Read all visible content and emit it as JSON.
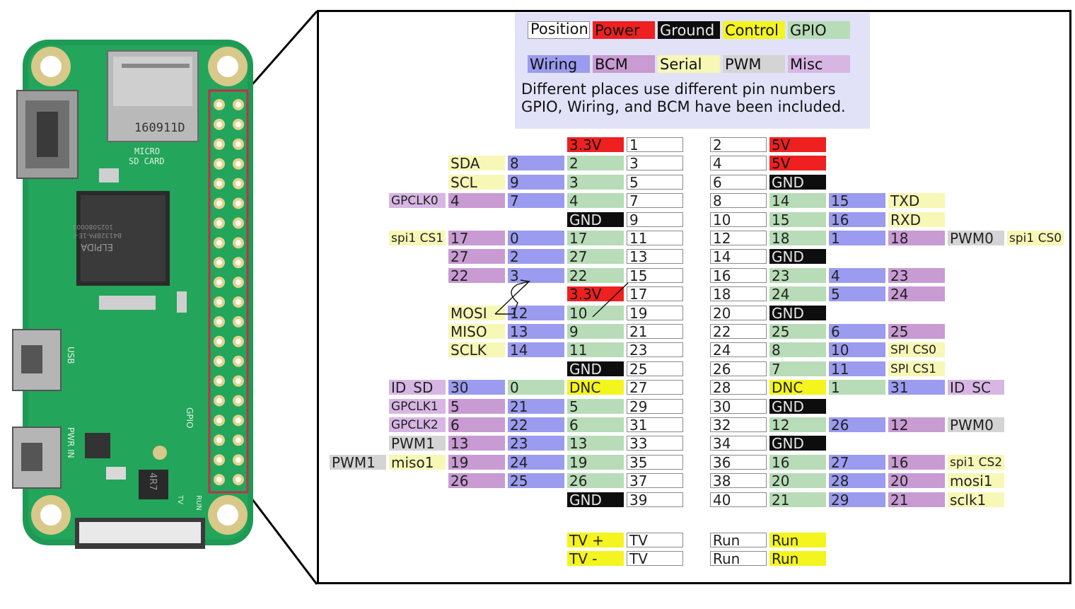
{
  "legend": {
    "items": [
      {
        "label": "Position",
        "cls": "pos"
      },
      {
        "label": "Power",
        "cls": "power"
      },
      {
        "label": "Ground",
        "cls": "gnd"
      },
      {
        "label": "Control",
        "cls": "control"
      },
      {
        "label": "GPIO",
        "cls": "gpio"
      },
      {
        "label": "Wiring",
        "cls": "wiring"
      },
      {
        "label": "BCM",
        "cls": "bcm"
      },
      {
        "label": "Serial",
        "cls": "serial"
      },
      {
        "label": "PWM",
        "cls": "pwm"
      },
      {
        "label": "Misc",
        "cls": "misc"
      }
    ],
    "note_line1": "Different places use different pin numbers",
    "note_line2": "GPIO, Wiring, and BCM have been included."
  },
  "board": {
    "sd_marking": "160911D",
    "sd_label_1": "MICRO",
    "sd_label_2": "SD CARD",
    "chip_brand": "ELPIDA",
    "chip_code": "B4132BPA-1E-F",
    "chip_code_2": "1025080000",
    "usb_label": "USB",
    "pwr_label": "PWR IN",
    "gpio_label": "GPIO",
    "inductor_label": "4R7",
    "run_label": "RUN",
    "tv_label": "TV"
  },
  "header_rows": [
    {
      "left": [
        [
          "3.3V",
          "power"
        ],
        [
          "1",
          "pos"
        ]
      ],
      "right": [
        [
          "2",
          "pos"
        ],
        [
          "5V",
          "power"
        ]
      ]
    },
    {
      "left": [
        [
          "SDA",
          "serial"
        ],
        [
          "8",
          "wiring"
        ],
        [
          "2",
          "gpio"
        ],
        [
          "3",
          "pos"
        ]
      ],
      "right": [
        [
          "4",
          "pos"
        ],
        [
          "5V",
          "power"
        ]
      ]
    },
    {
      "left": [
        [
          "SCL",
          "serial"
        ],
        [
          "9",
          "wiring"
        ],
        [
          "3",
          "gpio"
        ],
        [
          "5",
          "pos"
        ]
      ],
      "right": [
        [
          "6",
          "pos"
        ],
        [
          "GND",
          "gnd"
        ]
      ]
    },
    {
      "left": [
        [
          "GPCLK0",
          "misc",
          1
        ],
        [
          "4",
          "bcm"
        ],
        [
          "7",
          "wiring"
        ],
        [
          "4",
          "gpio"
        ],
        [
          "7",
          "pos"
        ]
      ],
      "right": [
        [
          "8",
          "pos"
        ],
        [
          "14",
          "gpio"
        ],
        [
          "15",
          "wiring"
        ],
        [
          "TXD",
          "serial"
        ]
      ]
    },
    {
      "left": [
        [
          "GND",
          "gnd"
        ],
        [
          "9",
          "pos"
        ]
      ],
      "right": [
        [
          "10",
          "pos"
        ],
        [
          "15",
          "gpio"
        ],
        [
          "16",
          "wiring"
        ],
        [
          "RXD",
          "serial"
        ]
      ]
    },
    {
      "left": [
        [
          "spi1 CS1",
          "serial",
          1
        ],
        [
          "17",
          "bcm"
        ],
        [
          "0",
          "wiring"
        ],
        [
          "17",
          "gpio"
        ],
        [
          "11",
          "pos"
        ]
      ],
      "right": [
        [
          "12",
          "pos"
        ],
        [
          "18",
          "gpio"
        ],
        [
          "1",
          "wiring"
        ],
        [
          "18",
          "bcm"
        ],
        [
          "PWM0",
          "pwm"
        ],
        [
          "spi1 CS0",
          "serial",
          1
        ]
      ]
    },
    {
      "left": [
        [
          "27",
          "bcm"
        ],
        [
          "2",
          "wiring"
        ],
        [
          "27",
          "gpio"
        ],
        [
          "13",
          "pos"
        ]
      ],
      "right": [
        [
          "14",
          "pos"
        ],
        [
          "GND",
          "gnd"
        ]
      ]
    },
    {
      "left": [
        [
          "22",
          "bcm"
        ],
        [
          "3",
          "wiring"
        ],
        [
          "22",
          "gpio"
        ],
        [
          "15",
          "pos"
        ]
      ],
      "right": [
        [
          "16",
          "pos"
        ],
        [
          "23",
          "gpio"
        ],
        [
          "4",
          "wiring"
        ],
        [
          "23",
          "bcm"
        ]
      ]
    },
    {
      "left": [
        [
          "3.3V",
          "power"
        ],
        [
          "17",
          "pos"
        ]
      ],
      "right": [
        [
          "18",
          "pos"
        ],
        [
          "24",
          "gpio"
        ],
        [
          "5",
          "wiring"
        ],
        [
          "24",
          "bcm"
        ]
      ]
    },
    {
      "left": [
        [
          "MOSI",
          "serial"
        ],
        [
          "12",
          "wiring"
        ],
        [
          "10",
          "gpio"
        ],
        [
          "19",
          "pos"
        ]
      ],
      "right": [
        [
          "20",
          "pos"
        ],
        [
          "GND",
          "gnd"
        ]
      ]
    },
    {
      "left": [
        [
          "MISO",
          "serial"
        ],
        [
          "13",
          "wiring"
        ],
        [
          "9",
          "gpio"
        ],
        [
          "21",
          "pos"
        ]
      ],
      "right": [
        [
          "22",
          "pos"
        ],
        [
          "25",
          "gpio"
        ],
        [
          "6",
          "wiring"
        ],
        [
          "25",
          "bcm"
        ]
      ]
    },
    {
      "left": [
        [
          "SCLK",
          "serial"
        ],
        [
          "14",
          "wiring"
        ],
        [
          "11",
          "gpio"
        ],
        [
          "23",
          "pos"
        ]
      ],
      "right": [
        [
          "24",
          "pos"
        ],
        [
          "8",
          "gpio"
        ],
        [
          "10",
          "wiring"
        ],
        [
          "SPI CS0",
          "serial",
          1
        ]
      ]
    },
    {
      "left": [
        [
          "GND",
          "gnd"
        ],
        [
          "25",
          "pos"
        ]
      ],
      "right": [
        [
          "26",
          "pos"
        ],
        [
          "7",
          "gpio"
        ],
        [
          "11",
          "wiring"
        ],
        [
          "SPI CS1",
          "serial",
          1
        ]
      ]
    },
    {
      "left": [
        [
          "ID_SD",
          "misc"
        ],
        [
          "30",
          "wiring"
        ],
        [
          "0",
          "gpio"
        ],
        [
          "DNC",
          "control"
        ],
        [
          "27",
          "pos"
        ]
      ],
      "right": [
        [
          "28",
          "pos"
        ],
        [
          "DNC",
          "control"
        ],
        [
          "1",
          "gpio"
        ],
        [
          "31",
          "wiring"
        ],
        [
          "ID_SC",
          "misc"
        ]
      ]
    },
    {
      "left": [
        [
          "GPCLK1",
          "misc",
          1
        ],
        [
          "5",
          "bcm"
        ],
        [
          "21",
          "wiring"
        ],
        [
          "5",
          "gpio"
        ],
        [
          "29",
          "pos"
        ]
      ],
      "right": [
        [
          "30",
          "pos"
        ],
        [
          "GND",
          "gnd"
        ]
      ]
    },
    {
      "left": [
        [
          "GPCLK2",
          "misc",
          1
        ],
        [
          "6",
          "bcm"
        ],
        [
          "22",
          "wiring"
        ],
        [
          "6",
          "gpio"
        ],
        [
          "31",
          "pos"
        ]
      ],
      "right": [
        [
          "32",
          "pos"
        ],
        [
          "12",
          "gpio"
        ],
        [
          "26",
          "wiring"
        ],
        [
          "12",
          "bcm"
        ],
        [
          "PWM0",
          "pwm"
        ]
      ]
    },
    {
      "left": [
        [
          "PWM1",
          "pwm"
        ],
        [
          "13",
          "bcm"
        ],
        [
          "23",
          "wiring"
        ],
        [
          "13",
          "gpio"
        ],
        [
          "33",
          "pos"
        ]
      ],
      "right": [
        [
          "34",
          "pos"
        ],
        [
          "GND",
          "gnd"
        ]
      ]
    },
    {
      "left": [
        [
          "PWM1",
          "pwm"
        ],
        [
          "miso1",
          "serial"
        ],
        [
          "19",
          "bcm"
        ],
        [
          "24",
          "wiring"
        ],
        [
          "19",
          "gpio"
        ],
        [
          "35",
          "pos"
        ]
      ],
      "right": [
        [
          "36",
          "pos"
        ],
        [
          "16",
          "gpio"
        ],
        [
          "27",
          "wiring"
        ],
        [
          "16",
          "bcm"
        ],
        [
          "spi1 CS2",
          "serial",
          1
        ]
      ]
    },
    {
      "left": [
        [
          "26",
          "bcm"
        ],
        [
          "25",
          "wiring"
        ],
        [
          "26",
          "gpio"
        ],
        [
          "37",
          "pos"
        ]
      ],
      "right": [
        [
          "38",
          "pos"
        ],
        [
          "20",
          "gpio"
        ],
        [
          "28",
          "wiring"
        ],
        [
          "20",
          "bcm"
        ],
        [
          "mosi1",
          "serial"
        ]
      ]
    },
    {
      "left": [
        [
          "GND",
          "gnd"
        ],
        [
          "39",
          "pos"
        ]
      ],
      "right": [
        [
          "40",
          "pos"
        ],
        [
          "21",
          "gpio"
        ],
        [
          "29",
          "wiring"
        ],
        [
          "21",
          "bcm"
        ],
        [
          "sclk1",
          "serial"
        ]
      ]
    }
  ],
  "extra_rows": [
    {
      "left": [
        [
          "TV +",
          "control"
        ],
        [
          "TV",
          "pos"
        ]
      ],
      "right": [
        [
          "Run",
          "pos"
        ],
        [
          "Run",
          "control"
        ]
      ]
    },
    {
      "left": [
        [
          "TV -",
          "control"
        ],
        [
          "TV",
          "pos"
        ]
      ],
      "right": [
        [
          "Run",
          "pos"
        ],
        [
          "Run",
          "control"
        ]
      ]
    }
  ]
}
